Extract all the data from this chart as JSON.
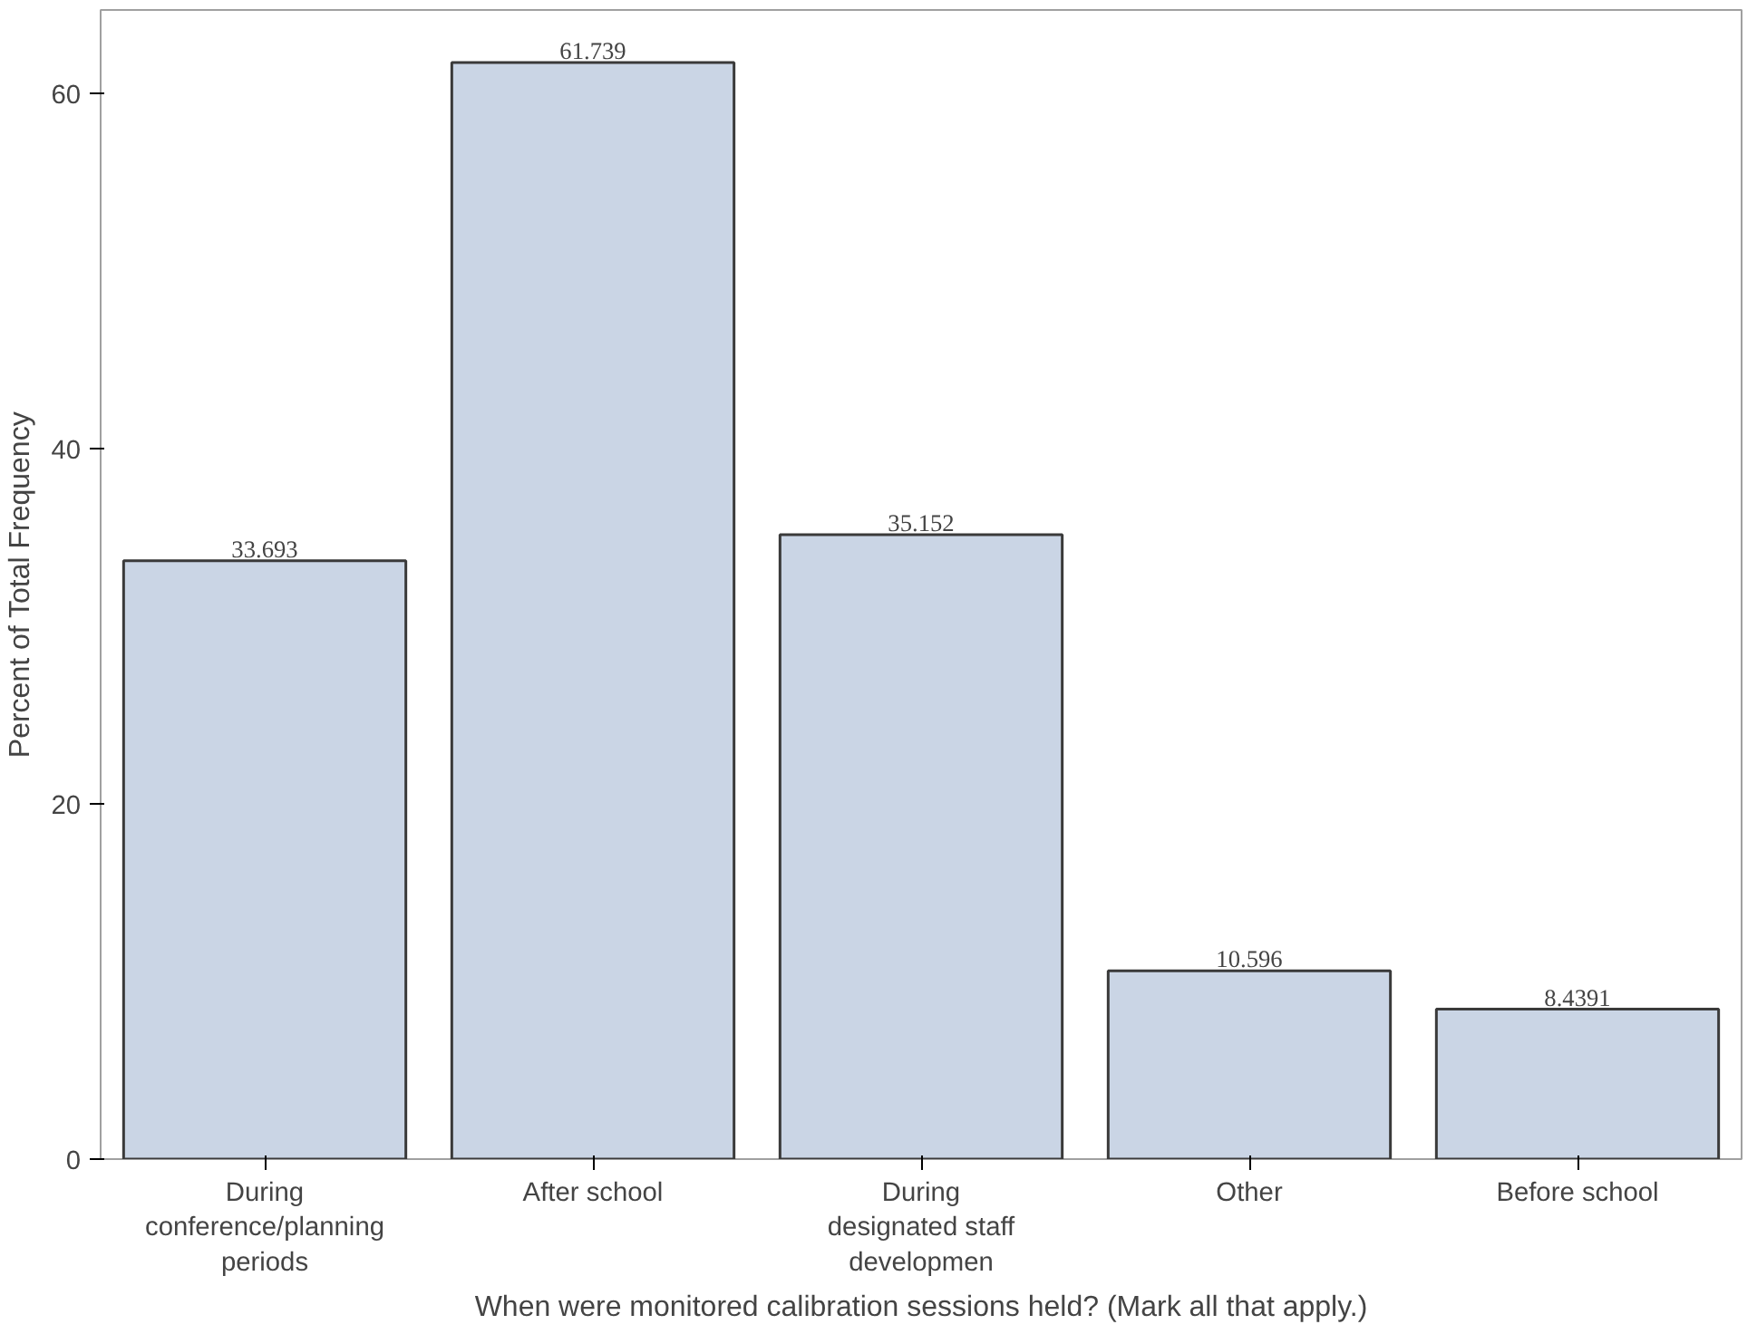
{
  "chart_data": {
    "type": "bar",
    "xlabel": "When were monitored calibration sessions held? (Mark all that apply.)",
    "ylabel": "Percent of Total Frequency",
    "categories": [
      "During\nconference/planning\nperiods",
      "After school",
      "During\ndesignated staff\ndevelopmen",
      "Other",
      "Before school"
    ],
    "values": [
      33.693,
      61.739,
      35.152,
      10.596,
      8.4391
    ],
    "color": "#cad5e5",
    "ylim": [
      0,
      64.7
    ],
    "yticks": [
      0,
      20,
      40,
      60
    ],
    "grid": false,
    "data_labels": true
  }
}
